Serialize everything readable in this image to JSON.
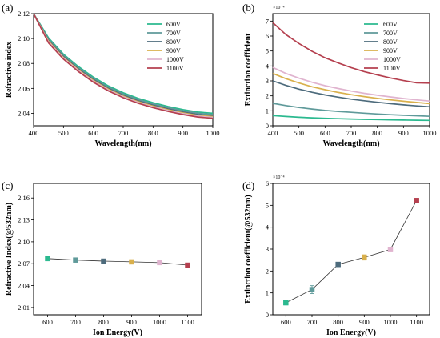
{
  "figure": {
    "panels": [
      "(a)",
      "(b)",
      "(c)",
      "(d)"
    ]
  },
  "chart_data": [
    {
      "panel": "(a)",
      "type": "line",
      "xlabel": "Wavelength(nm)",
      "ylabel": "Refractive index",
      "xlim": [
        400,
        1000
      ],
      "ylim": [
        2.03,
        2.12
      ],
      "xticks": [
        "400",
        "500",
        "600",
        "700",
        "800",
        "900",
        "1000"
      ],
      "yticks": [
        "2.04",
        "2.06",
        "2.08",
        "2.10",
        "2.12"
      ],
      "grid": false,
      "legend": "top-right",
      "x": [
        400,
        450,
        500,
        550,
        600,
        650,
        700,
        750,
        800,
        850,
        900,
        950,
        1000
      ],
      "series": [
        {
          "name": "600V",
          "color": "#2bb98f",
          "values": [
            2.12,
            2.1005,
            2.0875,
            2.0775,
            2.069,
            2.062,
            2.0565,
            2.052,
            2.0485,
            2.0455,
            2.043,
            2.041,
            2.04
          ]
        },
        {
          "name": "700V",
          "color": "#5f9a9a",
          "values": [
            2.12,
            2.0995,
            2.0865,
            2.0765,
            2.068,
            2.061,
            2.0555,
            2.051,
            2.0475,
            2.0445,
            2.042,
            2.04,
            2.039
          ]
        },
        {
          "name": "800V",
          "color": "#4d6b7c",
          "values": [
            2.12,
            2.0985,
            2.0855,
            2.0755,
            2.067,
            2.06,
            2.0545,
            2.05,
            2.0465,
            2.0435,
            2.041,
            2.039,
            2.038
          ]
        },
        {
          "name": "900V",
          "color": "#d9b04c",
          "values": [
            2.12,
            2.0978,
            2.0848,
            2.0748,
            2.0663,
            2.0593,
            2.0538,
            2.0493,
            2.0458,
            2.0428,
            2.0403,
            2.0383,
            2.0373
          ]
        },
        {
          "name": "1000V",
          "color": "#e0b4cf",
          "values": [
            2.12,
            2.0972,
            2.0842,
            2.0742,
            2.0657,
            2.0587,
            2.0532,
            2.0487,
            2.0452,
            2.0422,
            2.0397,
            2.0377,
            2.0367
          ]
        },
        {
          "name": "1100V",
          "color": "#b5404f",
          "values": [
            2.12,
            2.0965,
            2.0835,
            2.0735,
            2.065,
            2.058,
            2.0525,
            2.048,
            2.0445,
            2.0415,
            2.039,
            2.037,
            2.036
          ]
        }
      ]
    },
    {
      "panel": "(b)",
      "type": "line",
      "xlabel": "Wavelength(nm)",
      "ylabel": "Extinction coefficient",
      "multiplier": "×10⁻⁴",
      "xlim": [
        400,
        1000
      ],
      "ylim": [
        0,
        7.5
      ],
      "xticks": [
        "400",
        "500",
        "600",
        "700",
        "800",
        "900",
        "1000"
      ],
      "yticks": [
        "0",
        "1",
        "2",
        "3",
        "4",
        "5",
        "6",
        "7"
      ],
      "grid": false,
      "legend": "top-right",
      "x": [
        400,
        450,
        500,
        550,
        600,
        650,
        700,
        750,
        800,
        850,
        900,
        950,
        1000
      ],
      "series": [
        {
          "name": "600V",
          "color": "#2bb98f",
          "values": [
            0.68,
            0.62,
            0.57,
            0.53,
            0.5,
            0.47,
            0.45,
            0.43,
            0.41,
            0.39,
            0.38,
            0.37,
            0.36
          ]
        },
        {
          "name": "700V",
          "color": "#5f9a9a",
          "values": [
            1.5,
            1.35,
            1.22,
            1.12,
            1.03,
            0.96,
            0.9,
            0.84,
            0.79,
            0.74,
            0.7,
            0.67,
            0.63
          ]
        },
        {
          "name": "800V",
          "color": "#4d6b7c",
          "values": [
            3.0,
            2.7,
            2.45,
            2.24,
            2.06,
            1.91,
            1.78,
            1.67,
            1.57,
            1.48,
            1.4,
            1.33,
            1.27
          ]
        },
        {
          "name": "900V",
          "color": "#d9b04c",
          "values": [
            3.5,
            3.15,
            2.86,
            2.61,
            2.41,
            2.23,
            2.08,
            1.95,
            1.83,
            1.73,
            1.64,
            1.56,
            1.48
          ]
        },
        {
          "name": "1000V",
          "color": "#e0b4cf",
          "values": [
            3.9,
            3.5,
            3.18,
            2.91,
            2.68,
            2.49,
            2.32,
            2.17,
            2.04,
            1.93,
            1.82,
            1.73,
            1.65
          ]
        },
        {
          "name": "1100V",
          "color": "#b5404f",
          "values": [
            6.9,
            6.1,
            5.5,
            4.98,
            4.55,
            4.2,
            3.89,
            3.62,
            3.4,
            3.2,
            3.02,
            2.87,
            2.85
          ]
        }
      ]
    },
    {
      "panel": "(c)",
      "type": "line",
      "xlabel": "Ion Energy(V)",
      "ylabel": "Refractive Index(@532nm)",
      "xlim": [
        550,
        1150
      ],
      "ylim": [
        2.0,
        2.18
      ],
      "xticks": [
        "600",
        "700",
        "800",
        "900",
        "1000",
        "1100"
      ],
      "yticks": [
        "2.01",
        "2.04",
        "2.07",
        "2.10",
        "2.13",
        "2.16"
      ],
      "grid": false,
      "x": [
        600,
        700,
        800,
        900,
        1000,
        1100
      ],
      "values": [
        2.077,
        2.075,
        2.0735,
        2.0725,
        2.0715,
        2.068
      ],
      "marker_colors": [
        "#2bb98f",
        "#5f9a9a",
        "#4d6b7c",
        "#d9b04c",
        "#e0b4cf",
        "#b5404f"
      ]
    },
    {
      "panel": "(d)",
      "type": "line",
      "xlabel": "Ion Energy(V)",
      "ylabel": "Extinction coefficient(@532nm)",
      "multiplier": "×10⁻⁴",
      "xlim": [
        550,
        1150
      ],
      "ylim": [
        0,
        6
      ],
      "xticks": [
        "600",
        "700",
        "800",
        "900",
        "1000",
        "1100"
      ],
      "yticks": [
        "0",
        "1",
        "2",
        "3",
        "4",
        "5",
        "6"
      ],
      "grid": false,
      "x": [
        600,
        700,
        800,
        900,
        1000,
        1100
      ],
      "values": [
        0.55,
        1.15,
        2.3,
        2.62,
        2.98,
        5.22
      ],
      "errors": [
        0.1,
        0.18,
        0.1,
        0.12,
        0.1,
        0.08
      ],
      "marker_colors": [
        "#2bb98f",
        "#5f9a9a",
        "#4d6b7c",
        "#d9b04c",
        "#e0b4cf",
        "#b5404f"
      ]
    }
  ]
}
